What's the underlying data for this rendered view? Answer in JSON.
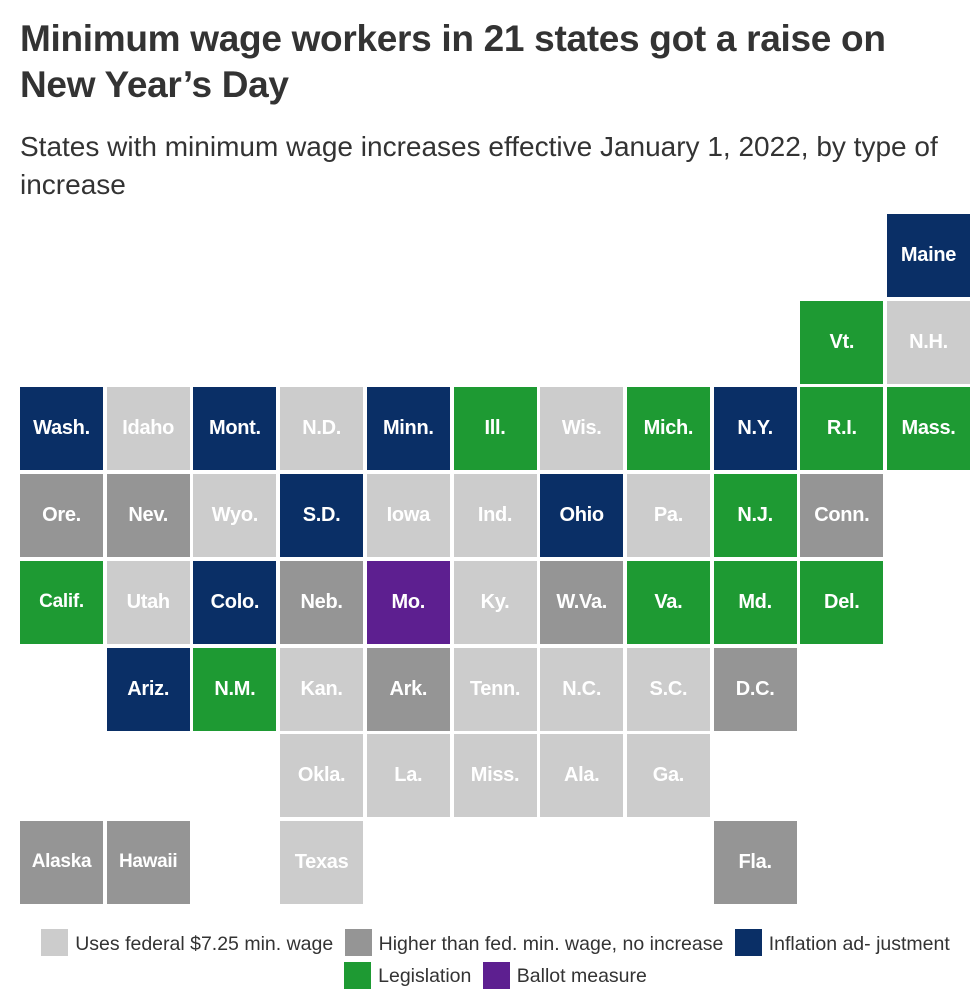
{
  "title": "Minimum wage workers in 21 states got a raise on New Year’s Day",
  "subtitle": "States with minimum wage increases effective January 1, 2022, by type of increase",
  "colors": {
    "federal": "#cccccc",
    "higher": "#959595",
    "inflation": "#0a2f66",
    "legislation": "#1e9a33",
    "ballot": "#5d1f90"
  },
  "legend": [
    {
      "key": "federal",
      "label": "Uses federal $7.25 min. wage"
    },
    {
      "key": "higher",
      "label": "Higher than fed. min. wage, no increase"
    },
    {
      "key": "inflation",
      "label": "Inflation ad- justment"
    },
    {
      "key": "legislation",
      "label": "Legislation"
    },
    {
      "key": "ballot",
      "label": "Ballot measure"
    }
  ],
  "states": [
    {
      "label": "Maine",
      "type": "inflation",
      "row": 0,
      "col": 10
    },
    {
      "label": "Vt.",
      "type": "legislation",
      "row": 1,
      "col": 9
    },
    {
      "label": "N.H.",
      "type": "federal",
      "row": 1,
      "col": 10
    },
    {
      "label": "Wash.",
      "type": "inflation",
      "row": 2,
      "col": 0
    },
    {
      "label": "Idaho",
      "type": "federal",
      "row": 2,
      "col": 1
    },
    {
      "label": "Mont.",
      "type": "inflation",
      "row": 2,
      "col": 2
    },
    {
      "label": "N.D.",
      "type": "federal",
      "row": 2,
      "col": 3
    },
    {
      "label": "Minn.",
      "type": "inflation",
      "row": 2,
      "col": 4
    },
    {
      "label": "Ill.",
      "type": "legislation",
      "row": 2,
      "col": 5
    },
    {
      "label": "Wis.",
      "type": "federal",
      "row": 2,
      "col": 6
    },
    {
      "label": "Mich.",
      "type": "legislation",
      "row": 2,
      "col": 7
    },
    {
      "label": "N.Y.",
      "type": "inflation",
      "row": 2,
      "col": 8
    },
    {
      "label": "R.I.",
      "type": "legislation",
      "row": 2,
      "col": 9
    },
    {
      "label": "Mass.",
      "type": "legislation",
      "row": 2,
      "col": 10
    },
    {
      "label": "Ore.",
      "type": "higher",
      "row": 3,
      "col": 0
    },
    {
      "label": "Nev.",
      "type": "higher",
      "row": 3,
      "col": 1
    },
    {
      "label": "Wyo.",
      "type": "federal",
      "row": 3,
      "col": 2
    },
    {
      "label": "S.D.",
      "type": "inflation",
      "row": 3,
      "col": 3
    },
    {
      "label": "Iowa",
      "type": "federal",
      "row": 3,
      "col": 4
    },
    {
      "label": "Ind.",
      "type": "federal",
      "row": 3,
      "col": 5
    },
    {
      "label": "Ohio",
      "type": "inflation",
      "row": 3,
      "col": 6
    },
    {
      "label": "Pa.",
      "type": "federal",
      "row": 3,
      "col": 7
    },
    {
      "label": "N.J.",
      "type": "legislation",
      "row": 3,
      "col": 8
    },
    {
      "label": "Conn.",
      "type": "higher",
      "row": 3,
      "col": 9
    },
    {
      "label": "Calif.",
      "type": "legislation",
      "row": 4,
      "col": 0
    },
    {
      "label": "Utah",
      "type": "federal",
      "row": 4,
      "col": 1
    },
    {
      "label": "Colo.",
      "type": "inflation",
      "row": 4,
      "col": 2
    },
    {
      "label": "Neb.",
      "type": "higher",
      "row": 4,
      "col": 3
    },
    {
      "label": "Mo.",
      "type": "ballot",
      "row": 4,
      "col": 4
    },
    {
      "label": "Ky.",
      "type": "federal",
      "row": 4,
      "col": 5
    },
    {
      "label": "W.Va.",
      "type": "higher",
      "row": 4,
      "col": 6
    },
    {
      "label": "Va.",
      "type": "legislation",
      "row": 4,
      "col": 7
    },
    {
      "label": "Md.",
      "type": "legislation",
      "row": 4,
      "col": 8
    },
    {
      "label": "Del.",
      "type": "legislation",
      "row": 4,
      "col": 9
    },
    {
      "label": "Ariz.",
      "type": "inflation",
      "row": 5,
      "col": 1
    },
    {
      "label": "N.M.",
      "type": "legislation",
      "row": 5,
      "col": 2
    },
    {
      "label": "Kan.",
      "type": "federal",
      "row": 5,
      "col": 3
    },
    {
      "label": "Ark.",
      "type": "higher",
      "row": 5,
      "col": 4
    },
    {
      "label": "Tenn.",
      "type": "federal",
      "row": 5,
      "col": 5
    },
    {
      "label": "N.C.",
      "type": "federal",
      "row": 5,
      "col": 6
    },
    {
      "label": "S.C.",
      "type": "federal",
      "row": 5,
      "col": 7
    },
    {
      "label": "D.C.",
      "type": "higher",
      "row": 5,
      "col": 8
    },
    {
      "label": "Okla.",
      "type": "federal",
      "row": 6,
      "col": 3
    },
    {
      "label": "La.",
      "type": "federal",
      "row": 6,
      "col": 4
    },
    {
      "label": "Miss.",
      "type": "federal",
      "row": 6,
      "col": 5
    },
    {
      "label": "Ala.",
      "type": "federal",
      "row": 6,
      "col": 6
    },
    {
      "label": "Ga.",
      "type": "federal",
      "row": 6,
      "col": 7
    },
    {
      "label": "Alaska",
      "type": "higher",
      "row": 7,
      "col": 0
    },
    {
      "label": "Hawaii",
      "type": "higher",
      "row": 7,
      "col": 1
    },
    {
      "label": "Texas",
      "type": "federal",
      "row": 7,
      "col": 3
    },
    {
      "label": "Fla.",
      "type": "higher",
      "row": 7,
      "col": 8
    }
  ]
}
